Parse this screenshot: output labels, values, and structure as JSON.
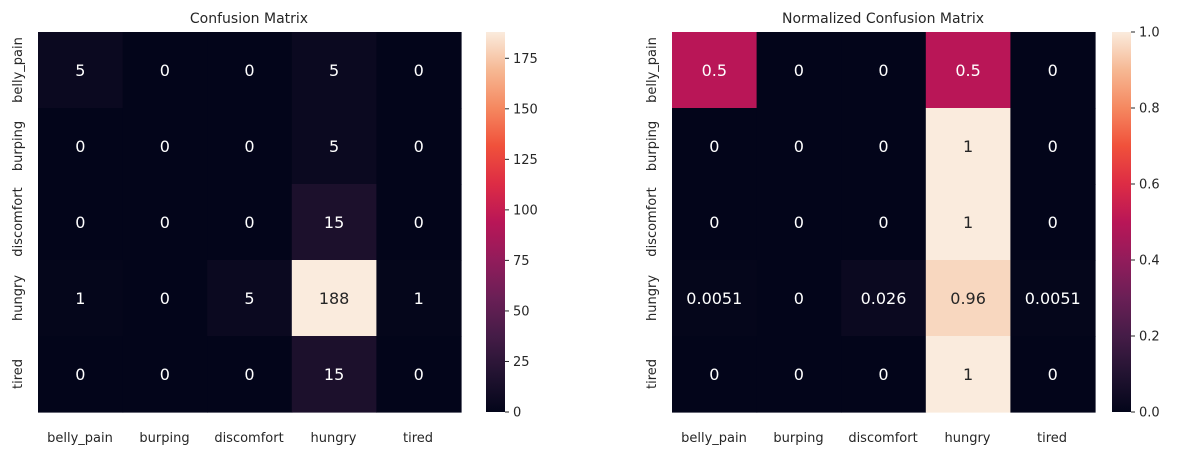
{
  "chart_data": [
    {
      "type": "heatmap",
      "title": "Confusion Matrix",
      "xlabel": "",
      "ylabel": "",
      "x_categories": [
        "belly_pain",
        "burping",
        "discomfort",
        "hungry",
        "tired"
      ],
      "y_categories": [
        "belly_pain",
        "burping",
        "discomfort",
        "hungry",
        "tired"
      ],
      "values": [
        [
          5,
          0,
          0,
          5,
          0
        ],
        [
          0,
          0,
          0,
          5,
          0
        ],
        [
          0,
          0,
          0,
          15,
          0
        ],
        [
          1,
          0,
          5,
          188,
          1
        ],
        [
          0,
          0,
          0,
          15,
          0
        ]
      ],
      "cell_labels": [
        [
          "5",
          "0",
          "0",
          "5",
          "0"
        ],
        [
          "0",
          "0",
          "0",
          "5",
          "0"
        ],
        [
          "0",
          "0",
          "0",
          "15",
          "0"
        ],
        [
          "1",
          "0",
          "5",
          "188",
          "1"
        ],
        [
          "0",
          "0",
          "0",
          "15",
          "0"
        ]
      ],
      "colormap": "rocket",
      "vmin": 0,
      "vmax": 188,
      "colorbar_ticks": [
        0,
        25,
        50,
        75,
        100,
        125,
        150,
        175
      ],
      "colorbar_tick_labels": [
        "0",
        "25",
        "50",
        "75",
        "100",
        "125",
        "150",
        "175"
      ],
      "grid": false,
      "colorbar": "right"
    },
    {
      "type": "heatmap",
      "title": "Normalized Confusion Matrix",
      "xlabel": "",
      "ylabel": "",
      "x_categories": [
        "belly_pain",
        "burping",
        "discomfort",
        "hungry",
        "tired"
      ],
      "y_categories": [
        "belly_pain",
        "burping",
        "discomfort",
        "hungry",
        "tired"
      ],
      "values": [
        [
          0.5,
          0,
          0,
          0.5,
          0
        ],
        [
          0,
          0,
          0,
          1,
          0
        ],
        [
          0,
          0,
          0,
          1,
          0
        ],
        [
          0.0051,
          0,
          0.026,
          0.96,
          0.0051
        ],
        [
          0,
          0,
          0,
          1,
          0
        ]
      ],
      "cell_labels": [
        [
          "0.5",
          "0",
          "0",
          "0.5",
          "0"
        ],
        [
          "0",
          "0",
          "0",
          "1",
          "0"
        ],
        [
          "0",
          "0",
          "0",
          "1",
          "0"
        ],
        [
          "0.0051",
          "0",
          "0.026",
          "0.96",
          "0.0051"
        ],
        [
          "0",
          "0",
          "0",
          "1",
          "0"
        ]
      ],
      "colormap": "rocket",
      "vmin": 0,
      "vmax": 1,
      "colorbar_ticks": [
        0,
        0.2,
        0.4,
        0.6,
        0.8,
        1.0
      ],
      "colorbar_tick_labels": [
        "0.0",
        "0.2",
        "0.4",
        "0.6",
        "0.8",
        "1.0"
      ],
      "grid": false,
      "colorbar": "right"
    }
  ]
}
